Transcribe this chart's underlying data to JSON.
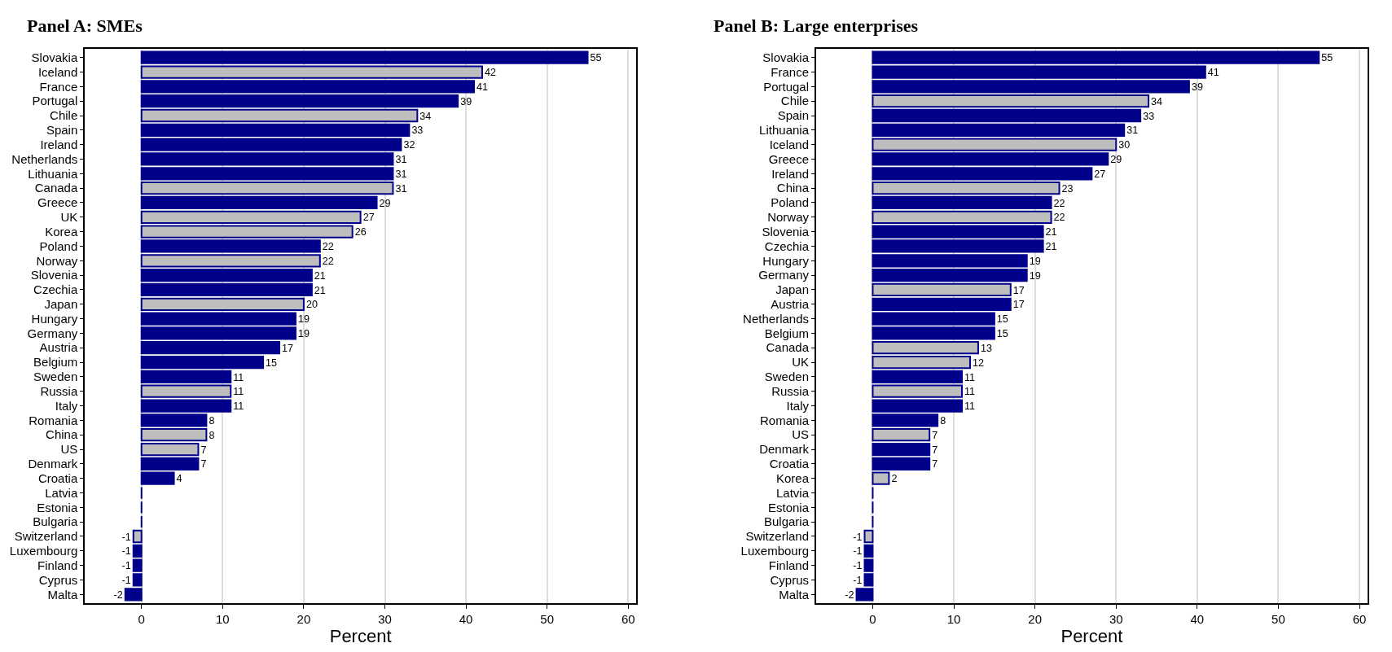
{
  "chart_data": [
    {
      "type": "bar",
      "orientation": "horizontal",
      "title": "Panel A: SMEs",
      "xlabel": "Percent",
      "grid": "x",
      "xlim": [
        -7,
        61
      ],
      "xticks": [
        0,
        10,
        20,
        30,
        40,
        50,
        60
      ],
      "categories": [
        "Slovakia",
        "Iceland",
        "France",
        "Portugal",
        "Chile",
        "Spain",
        "Ireland",
        "Netherlands",
        "Lithuania",
        "Canada",
        "Greece",
        "UK",
        "Korea",
        "Poland",
        "Norway",
        "Slovenia",
        "Czechia",
        "Japan",
        "Hungary",
        "Germany",
        "Austria",
        "Belgium",
        "Sweden",
        "Russia",
        "Italy",
        "Romania",
        "China",
        "US",
        "Denmark",
        "Croatia",
        "Latvia",
        "Estonia",
        "Bulgaria",
        "Switzerland",
        "Luxembourg",
        "Finland",
        "Cyprus",
        "Malta"
      ],
      "values": [
        55,
        42,
        41,
        39,
        34,
        33,
        32,
        31,
        31,
        31,
        29,
        27,
        26,
        22,
        22,
        21,
        21,
        20,
        19,
        19,
        17,
        15,
        11,
        11,
        11,
        8,
        8,
        7,
        7,
        4,
        0,
        0,
        0,
        -1,
        -1,
        -1,
        -1,
        -2
      ],
      "value_labels": [
        "55",
        "42",
        "41",
        "39",
        "34",
        "33",
        "32",
        "31",
        "31",
        "31",
        "29",
        "27",
        "26",
        "22",
        "22",
        "21",
        "21",
        "20",
        "19",
        "19",
        "17",
        "15",
        "11",
        "11",
        "11",
        "8",
        "8",
        "7",
        "7",
        "4",
        null,
        null,
        null,
        "-1",
        "-1",
        "-1",
        "-1",
        "-2"
      ],
      "colors": [
        "#00008b",
        "#bebebe",
        "#00008b",
        "#00008b",
        "#bebebe",
        "#00008b",
        "#00008b",
        "#00008b",
        "#00008b",
        "#bebebe",
        "#00008b",
        "#bebebe",
        "#bebebe",
        "#00008b",
        "#bebebe",
        "#00008b",
        "#00008b",
        "#bebebe",
        "#00008b",
        "#00008b",
        "#00008b",
        "#00008b",
        "#00008b",
        "#bebebe",
        "#00008b",
        "#00008b",
        "#bebebe",
        "#bebebe",
        "#00008b",
        "#00008b",
        "#00008b",
        "#00008b",
        "#00008b",
        "#bebebe",
        "#00008b",
        "#00008b",
        "#00008b",
        "#00008b"
      ]
    },
    {
      "type": "bar",
      "orientation": "horizontal",
      "title": "Panel B: Large enterprises",
      "xlabel": "Percent",
      "grid": "x",
      "xlim": [
        -7,
        61
      ],
      "xticks": [
        0,
        10,
        20,
        30,
        40,
        50,
        60
      ],
      "categories": [
        "Slovakia",
        "France",
        "Portugal",
        "Chile",
        "Spain",
        "Lithuania",
        "Iceland",
        "Greece",
        "Ireland",
        "China",
        "Poland",
        "Norway",
        "Slovenia",
        "Czechia",
        "Hungary",
        "Germany",
        "Japan",
        "Austria",
        "Netherlands",
        "Belgium",
        "Canada",
        "UK",
        "Sweden",
        "Russia",
        "Italy",
        "Romania",
        "US",
        "Denmark",
        "Croatia",
        "Korea",
        "Latvia",
        "Estonia",
        "Bulgaria",
        "Switzerland",
        "Luxembourg",
        "Finland",
        "Cyprus",
        "Malta"
      ],
      "values": [
        55,
        41,
        39,
        34,
        33,
        31,
        30,
        29,
        27,
        23,
        22,
        22,
        21,
        21,
        19,
        19,
        17,
        17,
        15,
        15,
        13,
        12,
        11,
        11,
        11,
        8,
        7,
        7,
        7,
        2,
        0,
        0,
        0,
        -1,
        -1,
        -1,
        -1,
        -2
      ],
      "value_labels": [
        "55",
        "41",
        "39",
        "34",
        "33",
        "31",
        "30",
        "29",
        "27",
        "23",
        "22",
        "22",
        "21",
        "21",
        "19",
        "19",
        "17",
        "17",
        "15",
        "15",
        "13",
        "12",
        "11",
        "11",
        "11",
        "8",
        "7",
        "7",
        "7",
        "2",
        null,
        null,
        null,
        "-1",
        "-1",
        "-1",
        "-1",
        "-2"
      ],
      "colors": [
        "#00008b",
        "#00008b",
        "#00008b",
        "#bebebe",
        "#00008b",
        "#00008b",
        "#bebebe",
        "#00008b",
        "#00008b",
        "#bebebe",
        "#00008b",
        "#bebebe",
        "#00008b",
        "#00008b",
        "#00008b",
        "#00008b",
        "#bebebe",
        "#00008b",
        "#00008b",
        "#00008b",
        "#bebebe",
        "#bebebe",
        "#00008b",
        "#bebebe",
        "#00008b",
        "#00008b",
        "#bebebe",
        "#00008b",
        "#00008b",
        "#bebebe",
        "#00008b",
        "#00008b",
        "#00008b",
        "#bebebe",
        "#00008b",
        "#00008b",
        "#00008b",
        "#00008b"
      ]
    }
  ]
}
